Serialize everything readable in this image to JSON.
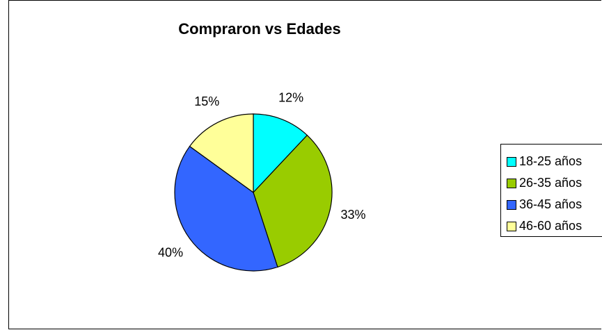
{
  "chart_data": {
    "type": "pie",
    "title": "Compraron vs Edades",
    "categories": [
      "18-25 años",
      "26-35 años",
      "36-45 años",
      "46-60 años"
    ],
    "values": [
      12,
      33,
      40,
      15
    ],
    "labels": [
      "12%",
      "33%",
      "40%",
      "15%"
    ],
    "colors": [
      "#00FFFF",
      "#99CC00",
      "#3366FF",
      "#FFFF99"
    ],
    "legend_position": "right"
  }
}
